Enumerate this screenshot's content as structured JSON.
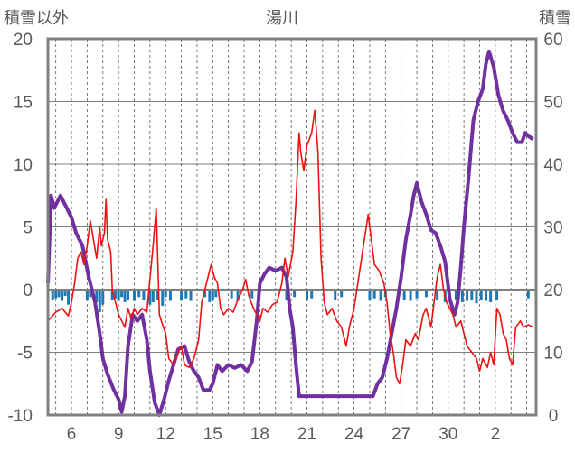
{
  "chart_data": {
    "type": "line",
    "title": "湯川",
    "ylabel_left": "積雪以外",
    "ylabel_right": "積雪",
    "ylim_left": [
      -10,
      20
    ],
    "ylim_right": [
      0,
      60
    ],
    "yticks_left": [
      "-10",
      "-5",
      "0",
      "5",
      "10",
      "15",
      "20"
    ],
    "yticks_right": [
      "0",
      "10",
      "20",
      "30",
      "40",
      "50",
      "60"
    ],
    "x_tick_labels": [
      "6",
      "9",
      "12",
      "15",
      "18",
      "21",
      "24",
      "27",
      "30",
      "2"
    ],
    "x_tick_days": [
      6,
      9,
      12,
      15,
      18,
      21,
      24,
      27,
      30,
      33
    ],
    "x_range": [
      4.5,
      35.6
    ],
    "colors": {
      "temperature": "#ee1111",
      "snow_depth": "#7030a0",
      "precipitation": "#1f77b4",
      "frame": "#808080",
      "grid": "#595959"
    },
    "series": [
      {
        "axis": "left",
        "color": "#ee1111",
        "points": [
          [
            4.5,
            -2.5
          ],
          [
            5.0,
            -1.8
          ],
          [
            5.4,
            -1.5
          ],
          [
            5.8,
            -2.1
          ],
          [
            6.0,
            -1.0
          ],
          [
            6.2,
            0.5
          ],
          [
            6.4,
            2.5
          ],
          [
            6.6,
            3.0
          ],
          [
            6.8,
            2.0
          ],
          [
            7.0,
            3.5
          ],
          [
            7.2,
            5.5
          ],
          [
            7.4,
            4.0
          ],
          [
            7.6,
            2.5
          ],
          [
            7.8,
            5.0
          ],
          [
            7.9,
            3.5
          ],
          [
            8.1,
            4.5
          ],
          [
            8.2,
            7.2
          ],
          [
            8.3,
            4.0
          ],
          [
            8.5,
            3.0
          ],
          [
            8.6,
            0.0
          ],
          [
            8.8,
            -1.0
          ],
          [
            9.0,
            -2.0
          ],
          [
            9.2,
            -2.5
          ],
          [
            9.4,
            -3.0
          ],
          [
            9.6,
            -1.5
          ],
          [
            9.8,
            -2.3
          ],
          [
            10.0,
            -1.5
          ],
          [
            10.2,
            -2.0
          ],
          [
            10.5,
            -1.5
          ],
          [
            10.8,
            -1.8
          ],
          [
            11.2,
            3.5
          ],
          [
            11.4,
            6.5
          ],
          [
            11.6,
            -2.0
          ],
          [
            11.8,
            -2.8
          ],
          [
            12.0,
            -3.5
          ],
          [
            12.2,
            -5.5
          ],
          [
            12.5,
            -6.0
          ],
          [
            12.8,
            -5.0
          ],
          [
            13.0,
            -4.5
          ],
          [
            13.2,
            -6.0
          ],
          [
            13.5,
            -6.2
          ],
          [
            13.8,
            -5.5
          ],
          [
            14.1,
            -4.0
          ],
          [
            14.3,
            -1.0
          ],
          [
            14.5,
            0.0
          ],
          [
            14.7,
            1.0
          ],
          [
            14.9,
            2.0
          ],
          [
            15.1,
            1.0
          ],
          [
            15.3,
            0.5
          ],
          [
            15.5,
            -1.5
          ],
          [
            15.7,
            -2.0
          ],
          [
            16.0,
            -1.5
          ],
          [
            16.3,
            -1.8
          ],
          [
            16.6,
            -0.8
          ],
          [
            16.9,
            0.0
          ],
          [
            17.1,
            0.8
          ],
          [
            17.3,
            -0.5
          ],
          [
            17.6,
            -1.5
          ],
          [
            17.8,
            -2.0
          ],
          [
            18.0,
            -2.5
          ],
          [
            18.2,
            -1.5
          ],
          [
            18.5,
            -1.8
          ],
          [
            18.8,
            -1.2
          ],
          [
            19.1,
            -1.0
          ],
          [
            19.4,
            0.5
          ],
          [
            19.6,
            2.5
          ],
          [
            19.8,
            1.0
          ],
          [
            20.1,
            3.0
          ],
          [
            20.3,
            7.0
          ],
          [
            20.5,
            12.5
          ],
          [
            20.6,
            11.0
          ],
          [
            20.8,
            9.5
          ],
          [
            21.0,
            11.5
          ],
          [
            21.3,
            12.5
          ],
          [
            21.5,
            14.3
          ],
          [
            21.7,
            11.0
          ],
          [
            21.9,
            2.5
          ],
          [
            22.1,
            -1.0
          ],
          [
            22.3,
            -2.0
          ],
          [
            22.6,
            -1.5
          ],
          [
            22.9,
            -2.5
          ],
          [
            23.2,
            -3.0
          ],
          [
            23.5,
            -4.5
          ],
          [
            23.7,
            -3.0
          ],
          [
            24.0,
            -1.5
          ],
          [
            24.3,
            1.0
          ],
          [
            24.6,
            3.5
          ],
          [
            24.9,
            6.0
          ],
          [
            25.1,
            4.0
          ],
          [
            25.3,
            2.0
          ],
          [
            25.6,
            1.5
          ],
          [
            25.9,
            0.5
          ],
          [
            26.1,
            -1.0
          ],
          [
            26.3,
            -3.5
          ],
          [
            26.5,
            -5.0
          ],
          [
            26.7,
            -7.0
          ],
          [
            26.9,
            -7.5
          ],
          [
            27.1,
            -6.0
          ],
          [
            27.3,
            -4.0
          ],
          [
            27.6,
            -4.5
          ],
          [
            27.9,
            -3.5
          ],
          [
            28.1,
            -4.0
          ],
          [
            28.4,
            -2.0
          ],
          [
            28.6,
            -1.5
          ],
          [
            28.9,
            -3.0
          ],
          [
            29.1,
            -1.0
          ],
          [
            29.3,
            1.0
          ],
          [
            29.5,
            2.0
          ],
          [
            29.7,
            0.0
          ],
          [
            29.9,
            -1.0
          ],
          [
            30.1,
            -1.5
          ],
          [
            30.3,
            -2.0
          ],
          [
            30.5,
            -3.0
          ],
          [
            30.8,
            -2.5
          ],
          [
            31.0,
            -3.5
          ],
          [
            31.2,
            -4.5
          ],
          [
            31.5,
            -5.0
          ],
          [
            31.8,
            -5.5
          ],
          [
            32.0,
            -6.5
          ],
          [
            32.2,
            -5.5
          ],
          [
            32.5,
            -6.2
          ],
          [
            32.7,
            -5.0
          ],
          [
            32.9,
            -6.0
          ],
          [
            33.1,
            -1.5
          ],
          [
            33.3,
            -2.0
          ],
          [
            33.5,
            -3.5
          ],
          [
            33.7,
            -4.0
          ],
          [
            33.9,
            -5.5
          ],
          [
            34.1,
            -6.0
          ],
          [
            34.3,
            -3.0
          ],
          [
            34.6,
            -2.5
          ],
          [
            34.8,
            -3.0
          ],
          [
            35.1,
            -2.8
          ],
          [
            35.4,
            -3.0
          ]
        ]
      },
      {
        "axis": "right",
        "color": "#7030a0",
        "points": [
          [
            4.5,
            21.0
          ],
          [
            4.7,
            35.0
          ],
          [
            4.9,
            33.0
          ],
          [
            5.1,
            34.0
          ],
          [
            5.3,
            35.0
          ],
          [
            5.5,
            34.0
          ],
          [
            5.7,
            33.0
          ],
          [
            6.0,
            31.5
          ],
          [
            6.3,
            29.0
          ],
          [
            6.7,
            27.0
          ],
          [
            7.1,
            22.0
          ],
          [
            7.5,
            18.0
          ],
          [
            7.8,
            13.0
          ],
          [
            8.0,
            9.0
          ],
          [
            8.3,
            6.5
          ],
          [
            8.7,
            4.0
          ],
          [
            9.0,
            2.5
          ],
          [
            9.2,
            0.5
          ],
          [
            9.4,
            3.0
          ],
          [
            9.6,
            11.0
          ],
          [
            9.9,
            16.0
          ],
          [
            10.2,
            15.0
          ],
          [
            10.5,
            16.0
          ],
          [
            10.8,
            12.0
          ],
          [
            11.0,
            7.0
          ],
          [
            11.3,
            2.0
          ],
          [
            11.6,
            0.0
          ],
          [
            11.9,
            2.5
          ],
          [
            12.2,
            5.5
          ],
          [
            12.5,
            8.0
          ],
          [
            12.8,
            10.5
          ],
          [
            13.2,
            11.0
          ],
          [
            13.5,
            8.5
          ],
          [
            13.8,
            7.0
          ],
          [
            14.1,
            6.0
          ],
          [
            14.4,
            4.0
          ],
          [
            14.8,
            4.0
          ],
          [
            15.0,
            5.0
          ],
          [
            15.3,
            8.0
          ],
          [
            15.6,
            7.0
          ],
          [
            16.0,
            8.0
          ],
          [
            16.4,
            7.5
          ],
          [
            16.8,
            8.0
          ],
          [
            17.2,
            7.0
          ],
          [
            17.5,
            8.5
          ],
          [
            17.8,
            15.0
          ],
          [
            18.0,
            21.0
          ],
          [
            18.3,
            22.5
          ],
          [
            18.6,
            23.5
          ],
          [
            19.0,
            23.0
          ],
          [
            19.4,
            23.5
          ],
          [
            19.7,
            22.0
          ],
          [
            19.9,
            17.0
          ],
          [
            20.1,
            14.0
          ],
          [
            20.3,
            8.0
          ],
          [
            20.5,
            3.0
          ],
          [
            20.7,
            3.0
          ],
          [
            21.3,
            3.0
          ],
          [
            22.0,
            3.0
          ],
          [
            23.0,
            3.0
          ],
          [
            24.0,
            3.0
          ],
          [
            24.8,
            3.0
          ],
          [
            25.2,
            3.0
          ],
          [
            25.5,
            5.0
          ],
          [
            25.8,
            6.0
          ],
          [
            26.1,
            9.0
          ],
          [
            26.4,
            13.0
          ],
          [
            26.7,
            17.0
          ],
          [
            27.0,
            22.0
          ],
          [
            27.3,
            28.0
          ],
          [
            27.6,
            32.0
          ],
          [
            27.8,
            35.0
          ],
          [
            28.0,
            37.0
          ],
          [
            28.3,
            34.0
          ],
          [
            28.6,
            32.0
          ],
          [
            28.9,
            29.5
          ],
          [
            29.2,
            29.0
          ],
          [
            29.5,
            27.0
          ],
          [
            29.8,
            24.5
          ],
          [
            30.1,
            18.5
          ],
          [
            30.4,
            16.0
          ],
          [
            30.6,
            18.0
          ],
          [
            30.8,
            23.5
          ],
          [
            31.0,
            30.0
          ],
          [
            31.3,
            38.0
          ],
          [
            31.6,
            47.0
          ],
          [
            31.9,
            50.0
          ],
          [
            32.2,
            52.0
          ],
          [
            32.4,
            56.0
          ],
          [
            32.6,
            58.0
          ],
          [
            32.9,
            55.5
          ],
          [
            33.2,
            51.0
          ],
          [
            33.5,
            48.5
          ],
          [
            33.8,
            47.0
          ],
          [
            34.1,
            45.0
          ],
          [
            34.4,
            43.5
          ],
          [
            34.7,
            43.5
          ],
          [
            34.9,
            45.0
          ],
          [
            35.1,
            44.5
          ],
          [
            35.4,
            44.0
          ]
        ]
      },
      {
        "axis": "left",
        "type": "bar",
        "color": "#1f77b4",
        "bars": [
          [
            4.8,
            -0.8
          ],
          [
            5.0,
            -0.7
          ],
          [
            5.2,
            -0.6
          ],
          [
            5.4,
            -0.9
          ],
          [
            5.6,
            -0.5
          ],
          [
            5.8,
            -1.2
          ],
          [
            7.0,
            -0.8
          ],
          [
            7.2,
            -0.6
          ],
          [
            7.6,
            -1.0
          ],
          [
            7.8,
            -1.8
          ],
          [
            8.0,
            -1.2
          ],
          [
            8.6,
            -0.8
          ],
          [
            8.8,
            -0.7
          ],
          [
            9.0,
            -0.9
          ],
          [
            9.2,
            -0.6
          ],
          [
            9.4,
            -1.0
          ],
          [
            9.6,
            -0.8
          ],
          [
            10.0,
            -0.9
          ],
          [
            10.3,
            -0.6
          ],
          [
            10.6,
            -0.8
          ],
          [
            11.0,
            -1.2
          ],
          [
            11.2,
            -1.0
          ],
          [
            11.5,
            -0.8
          ],
          [
            11.8,
            -1.3
          ],
          [
            12.0,
            -0.6
          ],
          [
            12.3,
            -0.9
          ],
          [
            13.0,
            -0.8
          ],
          [
            13.3,
            -0.7
          ],
          [
            13.6,
            -0.9
          ],
          [
            14.5,
            -0.6
          ],
          [
            14.8,
            -1.0
          ],
          [
            15.0,
            -0.8
          ],
          [
            15.2,
            -0.6
          ],
          [
            16.2,
            -0.7
          ],
          [
            16.6,
            -0.9
          ],
          [
            17.5,
            -0.7
          ],
          [
            19.7,
            -0.8
          ],
          [
            20.2,
            -0.6
          ],
          [
            21.0,
            -0.8
          ],
          [
            21.3,
            -0.7
          ],
          [
            22.8,
            -0.8
          ],
          [
            23.2,
            -0.6
          ],
          [
            25.0,
            -0.8
          ],
          [
            25.3,
            -0.7
          ],
          [
            25.7,
            -0.9
          ],
          [
            26.0,
            -0.6
          ],
          [
            27.2,
            -0.8
          ],
          [
            27.6,
            -0.9
          ],
          [
            28.0,
            -0.7
          ],
          [
            28.6,
            -0.6
          ],
          [
            29.3,
            -0.8
          ],
          [
            29.8,
            -1.0
          ],
          [
            30.5,
            -0.8
          ],
          [
            30.9,
            -1.0
          ],
          [
            31.2,
            -0.9
          ],
          [
            31.5,
            -0.8
          ],
          [
            31.8,
            -1.1
          ],
          [
            32.1,
            -0.8
          ],
          [
            32.4,
            -0.9
          ],
          [
            32.7,
            -1.0
          ],
          [
            33.1,
            -0.8
          ],
          [
            35.1,
            -0.7
          ]
        ]
      }
    ]
  }
}
